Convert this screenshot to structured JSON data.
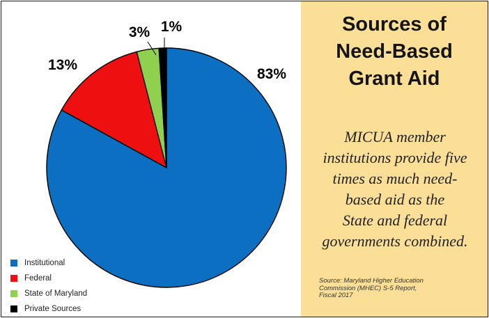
{
  "chart_data": {
    "type": "pie",
    "categories": [
      "Institutional",
      "Federal",
      "State of Maryland",
      "Private Sources"
    ],
    "values": [
      83,
      13,
      3,
      1
    ],
    "value_labels": [
      "83%",
      "13%",
      "3%",
      "1%"
    ],
    "colors": [
      "#0c6fc2",
      "#ee1010",
      "#8fd14f",
      "#000000"
    ],
    "start": "12 o'clock",
    "direction": "clockwise",
    "legend_position": "bottom-left"
  },
  "panel": {
    "title_lines": [
      "Sources of",
      "Need-Based",
      "Grant Aid"
    ],
    "body_lines": [
      "MICUA member",
      "institutions provide five",
      "times as much need-",
      "based aid as the",
      "State and federal",
      "governments combined."
    ],
    "source_lines": [
      "Source: Maryland Higher Education",
      "Commission (MHEC) S-5 Report,",
      "Fiscal 2017"
    ],
    "background": "#fbdf97"
  }
}
